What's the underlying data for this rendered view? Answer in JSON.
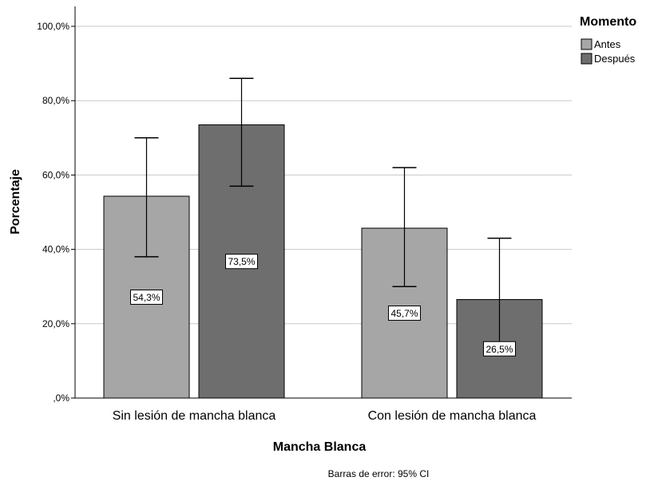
{
  "chart_data": {
    "type": "bar",
    "categories": [
      "Sin lesión de mancha blanca",
      "Con lesión de mancha blanca"
    ],
    "series": [
      {
        "name": "Antes",
        "color": "#a6a6a6",
        "values": [
          54.3,
          45.7
        ],
        "ci_low": [
          38.0,
          30.0
        ],
        "ci_high": [
          70.0,
          62.0
        ],
        "labels": [
          "54,3%",
          "45,7%"
        ]
      },
      {
        "name": "Después",
        "color": "#6e6e6e",
        "values": [
          73.5,
          26.5
        ],
        "ci_low": [
          57.0,
          14.0
        ],
        "ci_high": [
          86.0,
          43.0
        ],
        "labels": [
          "73,5%",
          "26,5%"
        ]
      }
    ],
    "xlabel": "Mancha Blanca",
    "ylabel": "Porcentaje",
    "ylim": [
      0,
      100
    ],
    "yticks": [
      0,
      20,
      40,
      60,
      80,
      100
    ],
    "ytick_labels": [
      ",0%",
      "20,0%",
      "40,0%",
      "60,0%",
      "80,0%",
      "100,0%"
    ],
    "grid": true,
    "legend_title": "Momento",
    "legend_position": "top-right",
    "footnote": "Barras de error: 95% CI"
  }
}
